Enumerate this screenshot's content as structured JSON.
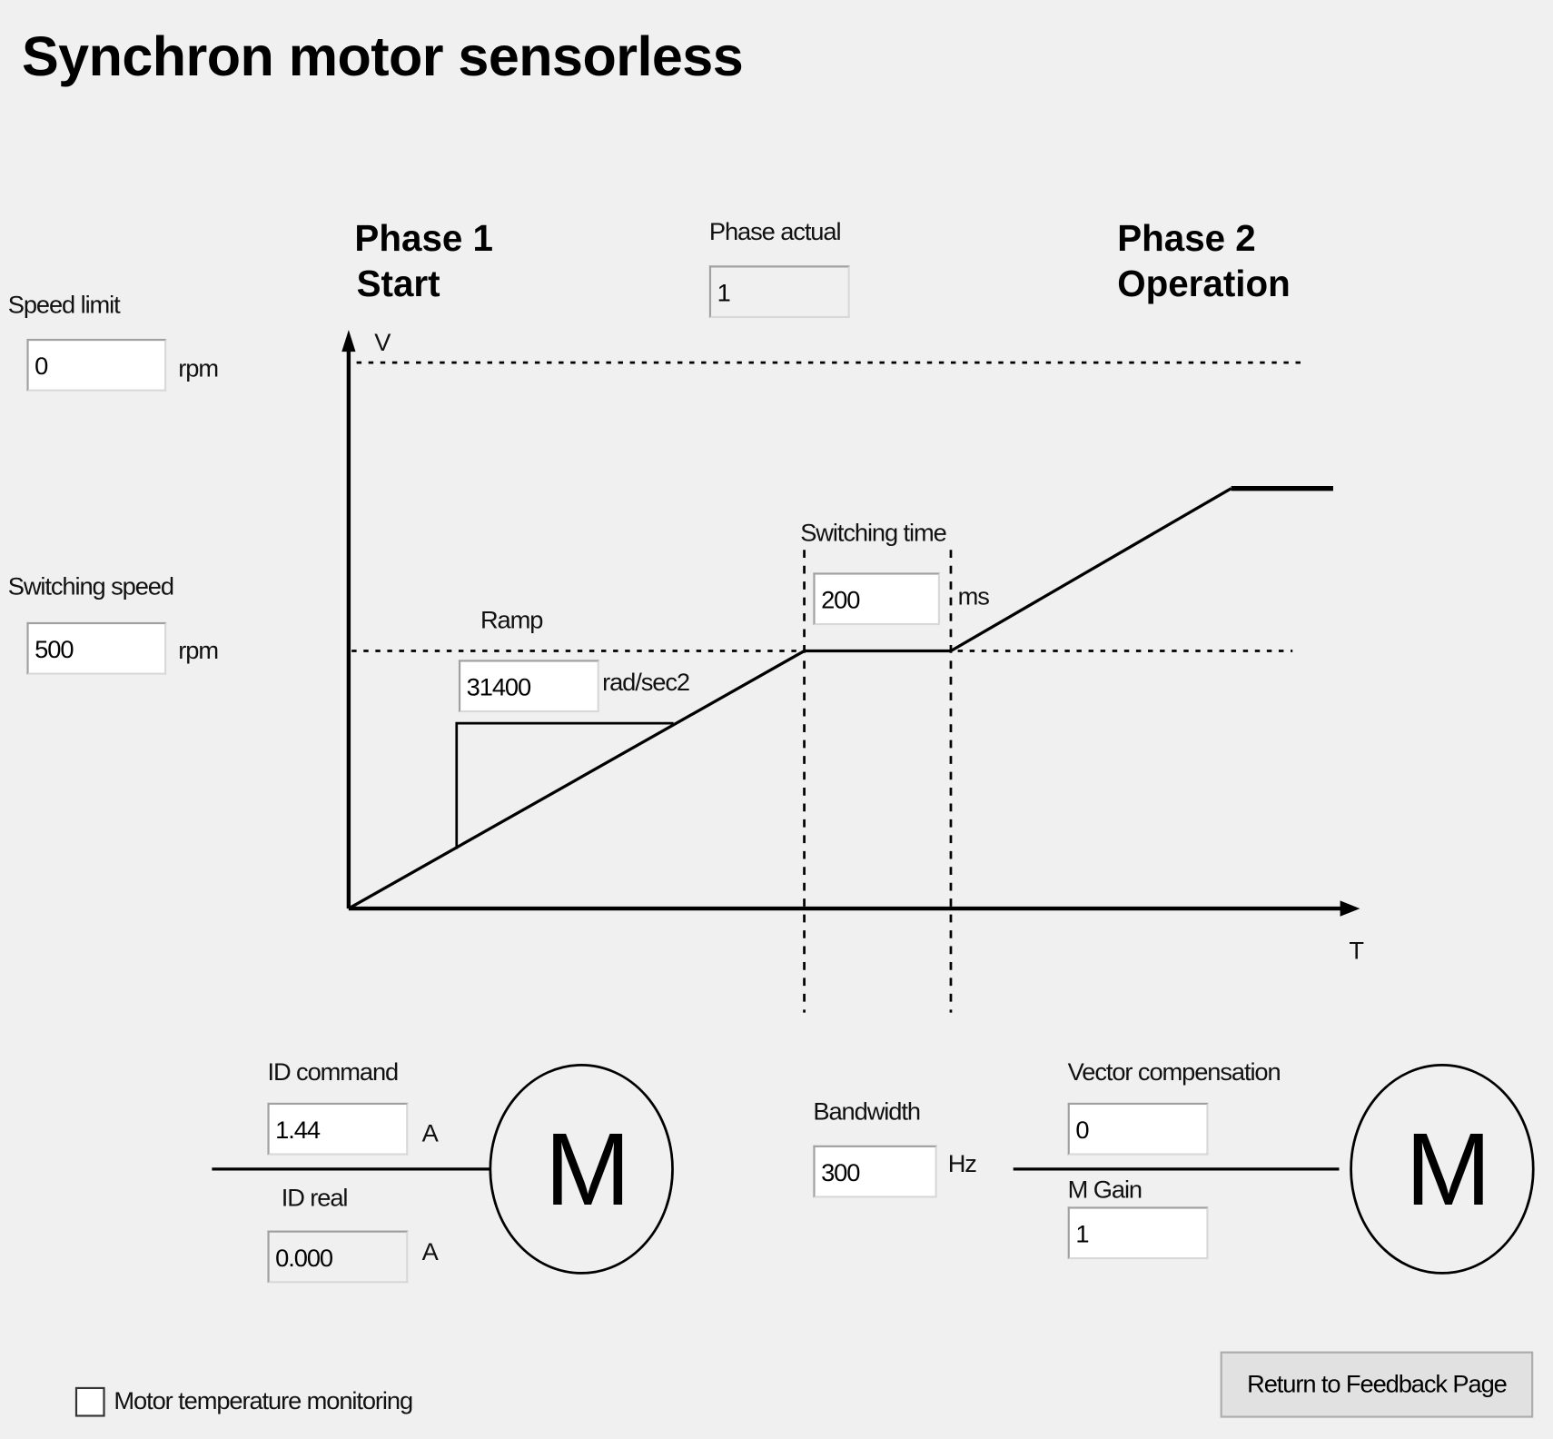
{
  "title": "Synchron motor sensorless",
  "phase1": {
    "line1": "Phase 1",
    "line2": "Start"
  },
  "phase2": {
    "line1": "Phase 2",
    "line2": "Operation"
  },
  "phase_actual": {
    "label": "Phase actual",
    "value": "1"
  },
  "speed_limit": {
    "label": "Speed limit",
    "value": "0",
    "unit": "rpm"
  },
  "switching_speed": {
    "label": "Switching speed",
    "value": "500",
    "unit": "rpm"
  },
  "ramp": {
    "label": "Ramp",
    "value": "31400",
    "unit": "rad/sec2"
  },
  "switching_time": {
    "label": "Switching time",
    "value": "200",
    "unit": "ms"
  },
  "diagram": {
    "y_axis": "V",
    "x_axis": "T"
  },
  "id_command": {
    "label": "ID command",
    "value": "1.44",
    "unit": "A"
  },
  "id_real": {
    "label": "ID real",
    "value": "0.000",
    "unit": "A"
  },
  "bandwidth": {
    "label": "Bandwidth",
    "value": "300",
    "unit": "Hz"
  },
  "vector_compensation": {
    "label": "Vector compensation",
    "value": "0"
  },
  "m_gain": {
    "label": "M Gain",
    "value": "1"
  },
  "motor_symbol": "M",
  "motor_temperature": {
    "label": "Motor temperature monitoring",
    "checked": false
  },
  "return_button": "Return to Feedback Page"
}
